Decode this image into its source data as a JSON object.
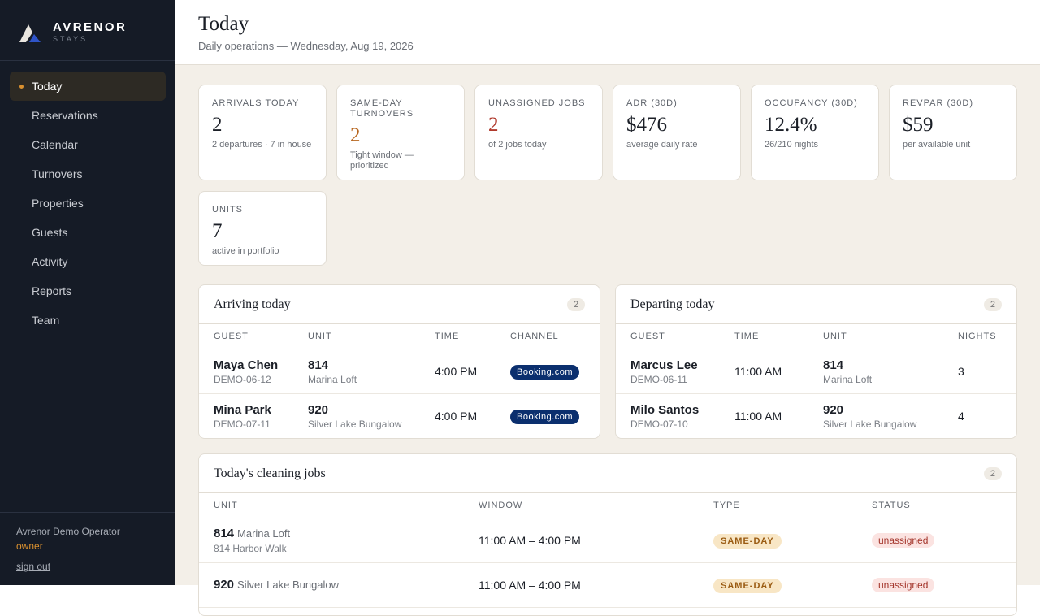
{
  "brand": {
    "name": "AVRENOR",
    "tagline": "STAYS"
  },
  "nav": {
    "items": [
      "Today",
      "Reservations",
      "Calendar",
      "Turnovers",
      "Properties",
      "Guests",
      "Activity",
      "Reports",
      "Team"
    ],
    "active": 0
  },
  "user": {
    "name": "Avrenor Demo Operator",
    "role": "owner",
    "signout": "sign out"
  },
  "header": {
    "title": "Today",
    "subtitle": "Daily operations — Wednesday, Aug 19, 2026"
  },
  "kpis": [
    {
      "label": "ARRIVALS TODAY",
      "value": "2",
      "note": "2 departures · 7 in house"
    },
    {
      "label": "SAME-DAY TURNOVERS",
      "value": "2",
      "note": "Tight window — prioritized",
      "color": "#b7661f"
    },
    {
      "label": "UNASSIGNED JOBS",
      "value": "2",
      "note": "of 2 jobs today",
      "color": "#b0392c"
    },
    {
      "label": "ADR (30D)",
      "value": "$476",
      "note": "average daily rate"
    },
    {
      "label": "OCCUPANCY (30D)",
      "value": "12.4%",
      "note": "26/210 nights"
    },
    {
      "label": "REVPAR (30D)",
      "value": "$59",
      "note": "per available unit"
    },
    {
      "label": "UNITS",
      "value": "7",
      "note": "active in portfolio"
    }
  ],
  "arriving": {
    "title": "Arriving today",
    "count": "2",
    "columns": [
      "GUEST",
      "UNIT",
      "TIME",
      "CHANNEL"
    ],
    "rows": [
      {
        "guest": "Maya Chen",
        "code": "DEMO-06-12",
        "unit": "814",
        "unit_name": "Marina Loft",
        "time": "4:00 PM",
        "channel": "Booking.com"
      },
      {
        "guest": "Mina Park",
        "code": "DEMO-07-11",
        "unit": "920",
        "unit_name": "Silver Lake Bungalow",
        "time": "4:00 PM",
        "channel": "Booking.com"
      }
    ]
  },
  "departing": {
    "title": "Departing today",
    "count": "2",
    "columns": [
      "GUEST",
      "TIME",
      "UNIT",
      "NIGHTS"
    ],
    "rows": [
      {
        "guest": "Marcus Lee",
        "code": "DEMO-06-11",
        "time": "11:00 AM",
        "unit": "814",
        "unit_name": "Marina Loft",
        "nights": "3"
      },
      {
        "guest": "Milo Santos",
        "code": "DEMO-07-10",
        "time": "11:00 AM",
        "unit": "920",
        "unit_name": "Silver Lake Bungalow",
        "nights": "4"
      }
    ]
  },
  "cleaning": {
    "title": "Today's cleaning jobs",
    "count": "2",
    "columns": [
      "UNIT",
      "WINDOW",
      "TYPE",
      "STATUS"
    ],
    "rows": [
      {
        "unit": "814",
        "unit_name": "Marina Loft",
        "address": "814 Harbor Walk",
        "window": "11:00 AM – 4:00 PM",
        "type": "SAME-DAY",
        "status": "unassigned"
      },
      {
        "unit": "920",
        "unit_name": "Silver Lake Bungalow",
        "window": "11:00 AM – 4:00 PM",
        "type": "SAME-DAY",
        "status": "unassigned"
      }
    ]
  }
}
